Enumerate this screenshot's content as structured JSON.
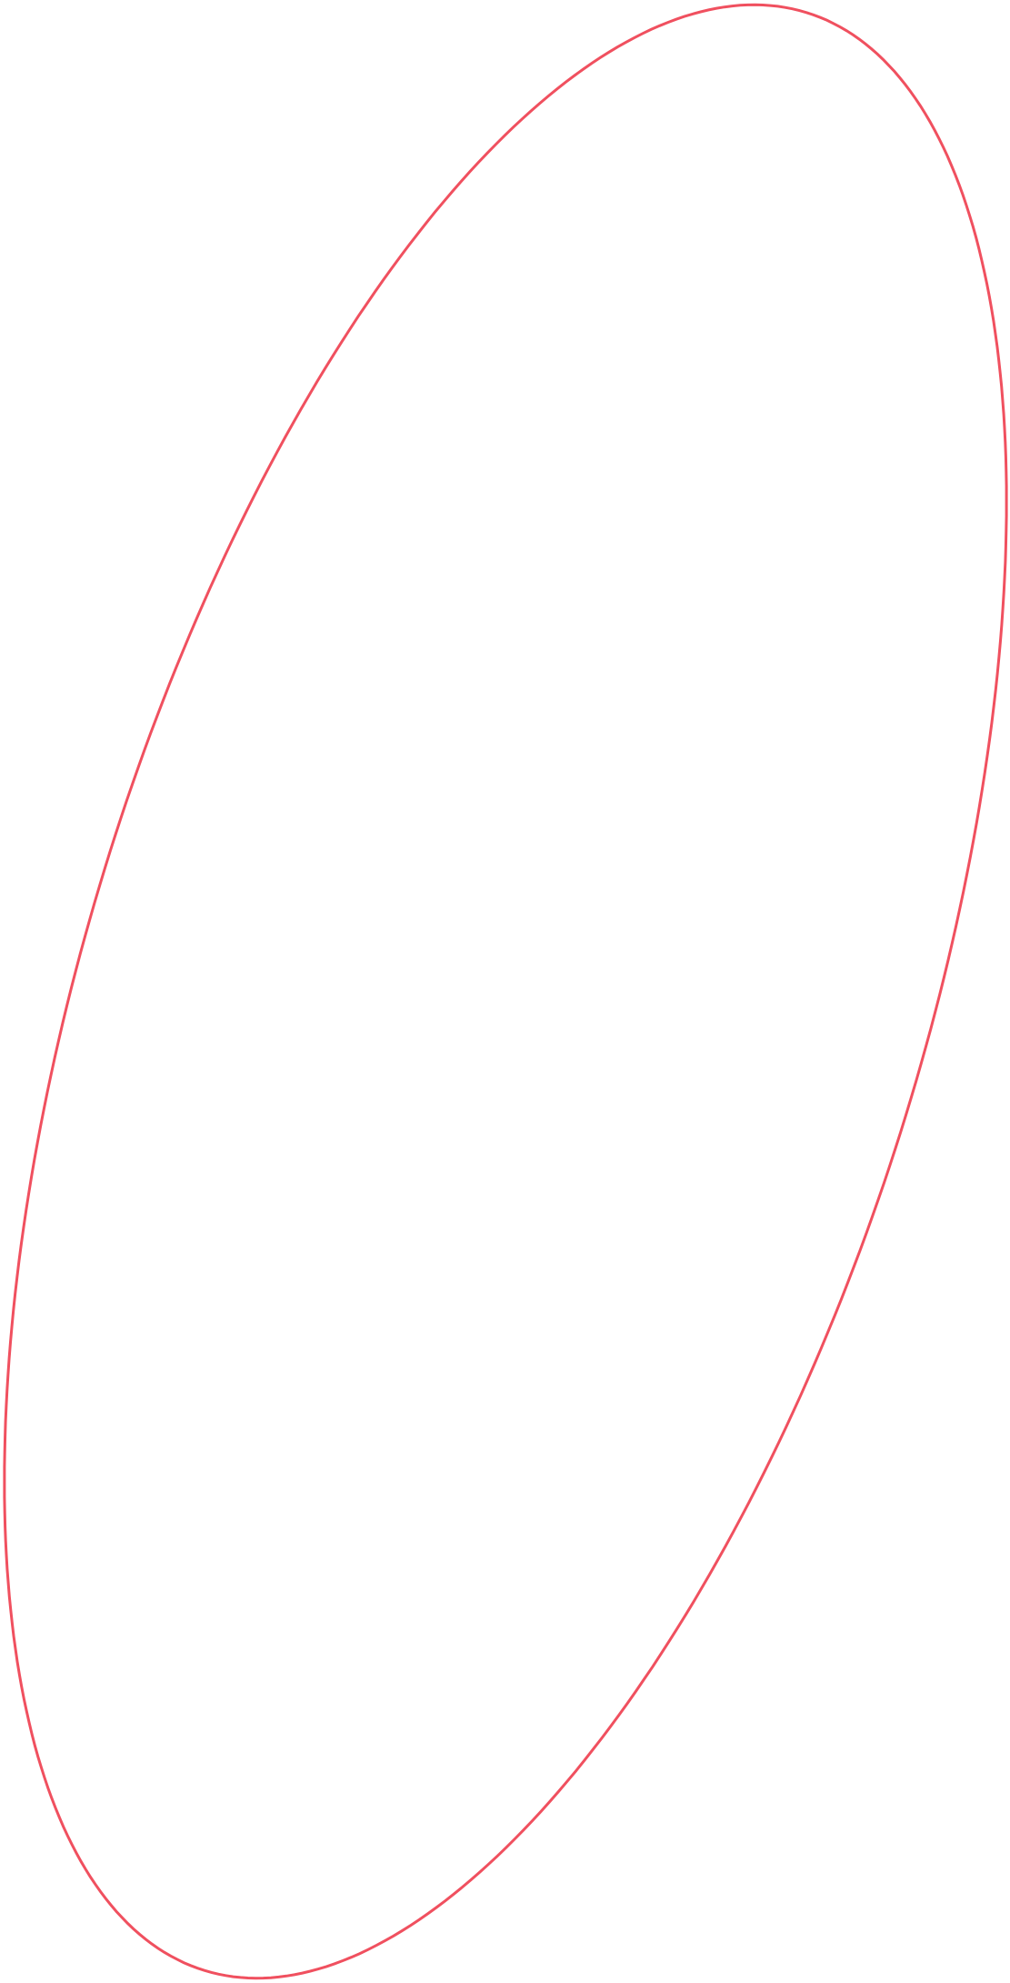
{
  "shape": {
    "type": "ellipse-outline",
    "stroke_color": "#f0505f",
    "fill": "none"
  }
}
